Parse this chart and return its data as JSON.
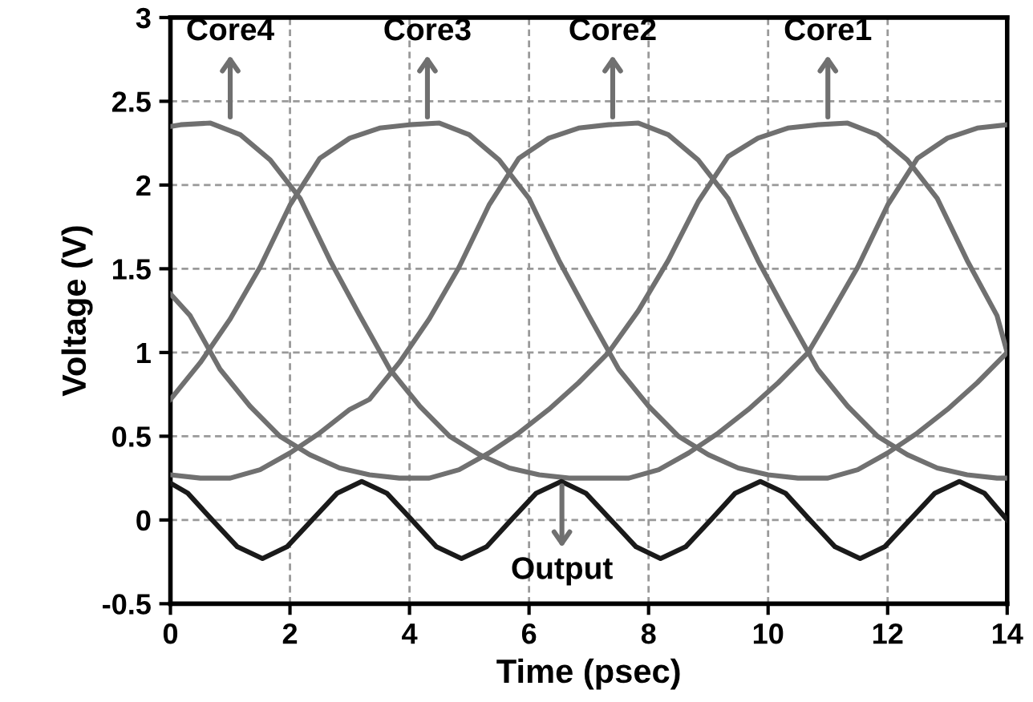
{
  "chart_data": {
    "type": "line",
    "xlabel": "Time (psec)",
    "ylabel": "Voltage (V)",
    "xlim": [
      0,
      14
    ],
    "xticks": [
      0,
      2,
      4,
      6,
      8,
      10,
      12,
      14
    ],
    "ylim": [
      -0.5,
      3
    ],
    "yticks": [
      -0.5,
      0,
      0.5,
      1,
      1.5,
      2,
      2.5,
      3
    ],
    "grid": true,
    "line_style": "solid",
    "marker": "none",
    "legend": false,
    "series": [
      {
        "color": "#707070",
        "x": [
          0,
          0.5,
          1,
          1.5,
          2,
          2.5,
          3,
          3.5,
          4,
          4.5,
          5,
          5.5,
          6,
          6.5,
          7,
          7.5,
          8,
          8.5,
          9,
          9.5,
          10,
          10.5,
          11,
          11.5,
          12,
          12.5,
          13,
          13.5,
          14
        ],
        "values": [
          0.72,
          0.94,
          1.2,
          1.51,
          1.88,
          2.16,
          2.28,
          2.34,
          2.36,
          2.37,
          2.3,
          2.15,
          1.92,
          1.55,
          1.22,
          0.9,
          0.68,
          0.5,
          0.39,
          0.31,
          0.27,
          0.25,
          0.25,
          0.3,
          0.4,
          0.52,
          0.66,
          0.82,
          1.0
        ]
      },
      {
        "color": "#707070",
        "x": [
          0,
          0.5,
          1,
          1.5,
          2,
          2.5,
          3,
          3.33,
          3.83,
          4.33,
          4.83,
          5.33,
          5.83,
          6.33,
          6.83,
          7.33,
          7.83,
          8.33,
          8.83,
          9.33,
          9.83,
          10.33,
          10.83,
          11.33,
          11.83,
          12.33,
          12.83,
          13.33,
          13.83,
          14
        ],
        "values": [
          0.27,
          0.25,
          0.25,
          0.3,
          0.4,
          0.52,
          0.66,
          0.72,
          0.94,
          1.2,
          1.51,
          1.88,
          2.16,
          2.28,
          2.34,
          2.36,
          2.37,
          2.3,
          2.15,
          1.92,
          1.55,
          1.22,
          0.9,
          0.68,
          0.5,
          0.39,
          0.31,
          0.27,
          0.25,
          0.25
        ]
      },
      {
        "color": "#707070",
        "x": [
          0,
          0.33,
          0.83,
          1.33,
          1.83,
          2.33,
          2.83,
          3.33,
          3.83,
          4.33,
          4.83,
          5.33,
          5.83,
          6.33,
          6.83,
          7.33,
          7.83,
          8.33,
          8.83,
          9.33,
          9.83,
          10.33,
          10.83,
          11.33,
          11.83,
          12.33,
          12.83,
          13.33,
          13.83,
          14
        ],
        "values": [
          1.35,
          1.22,
          0.9,
          0.68,
          0.5,
          0.39,
          0.31,
          0.27,
          0.25,
          0.25,
          0.3,
          0.4,
          0.52,
          0.66,
          0.82,
          1.0,
          1.25,
          1.55,
          1.9,
          2.17,
          2.28,
          2.34,
          2.36,
          2.37,
          2.3,
          2.15,
          1.92,
          1.55,
          1.22,
          1.0
        ]
      },
      {
        "color": "#707070",
        "x": [
          0,
          0.17,
          0.67,
          1.17,
          1.67,
          2.17,
          2.67,
          3.17,
          3.67,
          4.17,
          4.67,
          5.17,
          5.67,
          6.17,
          6.67,
          7.17,
          7.67,
          8.17,
          8.67,
          9.17,
          9.67,
          10.17,
          10.67,
          11,
          11.5,
          12,
          12.5,
          13,
          13.5,
          14
        ],
        "values": [
          2.35,
          2.36,
          2.37,
          2.3,
          2.15,
          1.92,
          1.55,
          1.22,
          0.9,
          0.68,
          0.5,
          0.39,
          0.31,
          0.27,
          0.25,
          0.25,
          0.25,
          0.3,
          0.4,
          0.52,
          0.66,
          0.82,
          1.0,
          1.2,
          1.51,
          1.88,
          2.16,
          2.28,
          2.34,
          2.36
        ]
      },
      {
        "color": "#1a1a1a",
        "x": [
          0,
          0.29,
          0.7,
          1.12,
          1.54,
          1.95,
          2.37,
          2.79,
          3.2,
          3.62,
          4.04,
          4.45,
          4.87,
          5.29,
          5.7,
          6.12,
          6.54,
          6.95,
          7.37,
          7.79,
          8.2,
          8.62,
          9.04,
          9.45,
          9.87,
          10.29,
          10.7,
          11.12,
          11.54,
          11.95,
          12.37,
          12.79,
          13.2,
          13.62,
          14
        ],
        "values": [
          0.22,
          0.16,
          0,
          -0.16,
          -0.23,
          -0.16,
          0,
          0.16,
          0.23,
          0.16,
          0,
          -0.16,
          -0.23,
          -0.16,
          0,
          0.16,
          0.23,
          0.16,
          0,
          -0.16,
          -0.23,
          -0.16,
          0,
          0.16,
          0.23,
          0.16,
          0,
          -0.16,
          -0.23,
          -0.16,
          0,
          0.16,
          0.23,
          0.16,
          0
        ]
      }
    ],
    "annotations": [
      {
        "text": "Core4",
        "x": 1.0,
        "y": 2.38
      },
      {
        "text": "Core3",
        "x": 4.3,
        "y": 2.38
      },
      {
        "text": "Core2",
        "x": 7.4,
        "y": 2.38
      },
      {
        "text": "Core1",
        "x": 11.0,
        "y": 2.38
      },
      {
        "text": "Output",
        "x": 6.55,
        "y": 0.23
      }
    ]
  }
}
